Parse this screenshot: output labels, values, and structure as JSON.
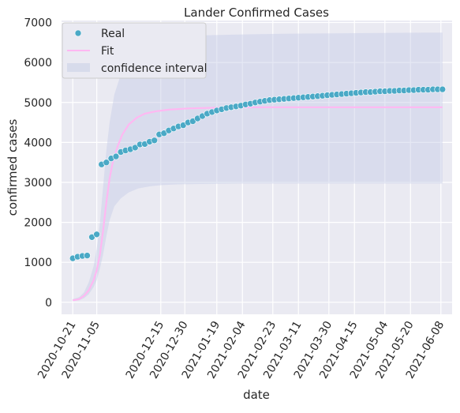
{
  "chart_data": {
    "type": "scatter",
    "title": "Lander Confirmed Cases",
    "xlabel": "date",
    "ylabel": "confirmed cases",
    "ylim": [
      -300,
      7050
    ],
    "xlim": [
      "2020-10-14",
      "2021-06-15"
    ],
    "grid": true,
    "legend_position": "top-left",
    "x_ticks": [
      "2020-10-21",
      "2020-11-05",
      "2020-12-15",
      "2020-12-30",
      "2021-01-19",
      "2021-02-04",
      "2021-02-23",
      "2021-03-11",
      "2021-03-30",
      "2021-04-15",
      "2021-05-04",
      "2021-05-20",
      "2021-06-08"
    ],
    "y_ticks": [
      0,
      1000,
      2000,
      3000,
      4000,
      5000,
      6000,
      7000
    ],
    "series": [
      {
        "name": "Real",
        "kind": "scatter",
        "color": "#4aa9c6",
        "x": [
          "2020-10-21",
          "2020-10-24",
          "2020-10-27",
          "2020-10-30",
          "2020-11-02",
          "2020-11-05",
          "2020-11-08",
          "2020-11-11",
          "2020-11-14",
          "2020-11-17",
          "2020-11-20",
          "2020-11-23",
          "2020-11-26",
          "2020-11-29",
          "2020-12-02",
          "2020-12-05",
          "2020-12-08",
          "2020-12-11",
          "2020-12-14",
          "2020-12-17",
          "2020-12-20",
          "2020-12-23",
          "2020-12-26",
          "2020-12-29",
          "2021-01-01",
          "2021-01-04",
          "2021-01-07",
          "2021-01-10",
          "2021-01-13",
          "2021-01-16",
          "2021-01-19",
          "2021-01-22",
          "2021-01-25",
          "2021-01-28",
          "2021-01-31",
          "2021-02-03",
          "2021-02-06",
          "2021-02-09",
          "2021-02-12",
          "2021-02-15",
          "2021-02-18",
          "2021-02-21",
          "2021-02-24",
          "2021-02-27",
          "2021-03-02",
          "2021-03-05",
          "2021-03-08",
          "2021-03-11",
          "2021-03-14",
          "2021-03-17",
          "2021-03-20",
          "2021-03-23",
          "2021-03-26",
          "2021-03-29",
          "2021-04-01",
          "2021-04-04",
          "2021-04-07",
          "2021-04-10",
          "2021-04-13",
          "2021-04-16",
          "2021-04-19",
          "2021-04-22",
          "2021-04-25",
          "2021-04-28",
          "2021-05-01",
          "2021-05-04",
          "2021-05-07",
          "2021-05-10",
          "2021-05-13",
          "2021-05-16",
          "2021-05-19",
          "2021-05-22",
          "2021-05-25",
          "2021-05-28",
          "2021-05-31",
          "2021-06-03",
          "2021-06-06",
          "2021-06-09"
        ],
        "y": [
          1100,
          1140,
          1160,
          1170,
          1630,
          1700,
          3450,
          3500,
          3600,
          3650,
          3760,
          3800,
          3830,
          3870,
          3950,
          3960,
          4020,
          4050,
          4200,
          4230,
          4300,
          4350,
          4400,
          4430,
          4500,
          4530,
          4600,
          4660,
          4720,
          4760,
          4800,
          4830,
          4860,
          4880,
          4900,
          4920,
          4950,
          4970,
          5000,
          5020,
          5040,
          5060,
          5070,
          5080,
          5090,
          5100,
          5110,
          5120,
          5130,
          5140,
          5150,
          5160,
          5170,
          5180,
          5190,
          5200,
          5210,
          5220,
          5230,
          5240,
          5250,
          5260,
          5260,
          5270,
          5280,
          5280,
          5290,
          5290,
          5300,
          5300,
          5310,
          5310,
          5320,
          5320,
          5320,
          5330,
          5330,
          5330
        ]
      },
      {
        "name": "Fit",
        "kind": "line",
        "color": "#ffb8f2",
        "x": [
          "2020-10-21",
          "2020-10-25",
          "2020-10-28",
          "2020-10-31",
          "2020-11-03",
          "2020-11-05",
          "2020-11-07",
          "2020-11-09",
          "2020-11-11",
          "2020-11-13",
          "2020-11-15",
          "2020-11-18",
          "2020-11-21",
          "2020-11-25",
          "2020-11-30",
          "2020-12-05",
          "2020-12-12",
          "2020-12-20",
          "2021-01-01",
          "2021-01-20",
          "2021-02-20",
          "2021-03-20",
          "2021-04-20",
          "2021-05-20",
          "2021-06-09"
        ],
        "y": [
          50,
          80,
          160,
          300,
          550,
          800,
          1200,
          1800,
          2500,
          3100,
          3500,
          3900,
          4200,
          4450,
          4620,
          4720,
          4780,
          4820,
          4850,
          4870,
          4880,
          4880,
          4880,
          4880,
          4880
        ]
      }
    ],
    "confidence_interval": {
      "name": "confidence interval",
      "color": "#c6cde6",
      "x": [
        "2020-10-21",
        "2020-10-25",
        "2020-10-28",
        "2020-10-31",
        "2020-11-03",
        "2020-11-05",
        "2020-11-07",
        "2020-11-09",
        "2020-11-11",
        "2020-11-13",
        "2020-11-16",
        "2020-11-20",
        "2020-11-25",
        "2020-12-01",
        "2020-12-08",
        "2020-12-15",
        "2020-12-25",
        "2021-01-10",
        "2021-02-01",
        "2021-03-01",
        "2021-04-01",
        "2021-05-01",
        "2021-06-09"
      ],
      "lower": [
        30,
        50,
        100,
        200,
        380,
        550,
        850,
        1200,
        1650,
        2050,
        2400,
        2600,
        2750,
        2850,
        2900,
        2930,
        2950,
        2960,
        2970,
        2970,
        2970,
        2970,
        2970
      ],
      "upper": [
        80,
        130,
        250,
        500,
        900,
        1350,
        2000,
        2900,
        3800,
        4500,
        5200,
        5700,
        6100,
        6350,
        6500,
        6580,
        6640,
        6680,
        6700,
        6720,
        6730,
        6740,
        6750
      ]
    }
  }
}
